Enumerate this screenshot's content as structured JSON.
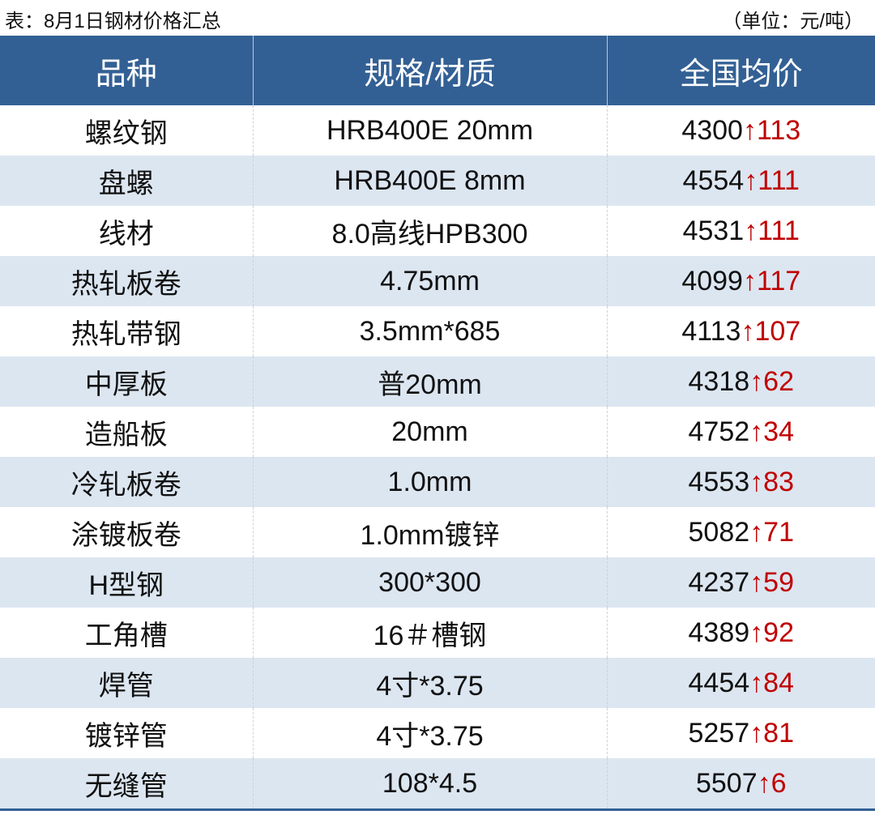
{
  "caption": {
    "title": "表：8月1日钢材价格汇总",
    "unit": "（单位：元/吨）"
  },
  "colors": {
    "header": "#336094",
    "stripe": "#dce6f1",
    "up": "#c00000"
  },
  "headers": [
    "品种",
    "规格/材质",
    "全国均价"
  ],
  "rows": [
    {
      "name": "螺纹钢",
      "spec": "HRB400E 20mm",
      "price": "4300",
      "arrow": "↑",
      "change": "113"
    },
    {
      "name": "盘螺",
      "spec": "HRB400E 8mm",
      "price": "4554",
      "arrow": "↑",
      "change": "111"
    },
    {
      "name": "线材",
      "spec": "8.0高线HPB300",
      "price": "4531",
      "arrow": "↑",
      "change": "111"
    },
    {
      "name": "热轧板卷",
      "spec": "4.75mm",
      "price": "4099",
      "arrow": "↑",
      "change": "117"
    },
    {
      "name": "热轧带钢",
      "spec": "3.5mm*685",
      "price": "4113",
      "arrow": "↑",
      "change": "107"
    },
    {
      "name": "中厚板",
      "spec": "普20mm",
      "price": "4318",
      "arrow": "↑",
      "change": "62"
    },
    {
      "name": "造船板",
      "spec": "20mm",
      "price": "4752",
      "arrow": "↑",
      "change": "34"
    },
    {
      "name": "冷轧板卷",
      "spec": "1.0mm",
      "price": "4553",
      "arrow": "↑",
      "change": "83"
    },
    {
      "name": "涂镀板卷",
      "spec": "1.0mm镀锌",
      "price": "5082",
      "arrow": "↑",
      "change": "71"
    },
    {
      "name": "H型钢",
      "spec": "300*300",
      "price": "4237",
      "arrow": "↑",
      "change": "59"
    },
    {
      "name": "工角槽",
      "spec": "16＃槽钢",
      "price": "4389",
      "arrow": "↑",
      "change": "92"
    },
    {
      "name": "焊管",
      "spec": "4寸*3.75",
      "price": "4454",
      "arrow": "↑",
      "change": "84"
    },
    {
      "name": "镀锌管",
      "spec": "4寸*3.75",
      "price": "5257",
      "arrow": "↑",
      "change": "81"
    },
    {
      "name": "无缝管",
      "spec": "108*4.5",
      "price": "5507",
      "arrow": "↑",
      "change": "6"
    }
  ]
}
